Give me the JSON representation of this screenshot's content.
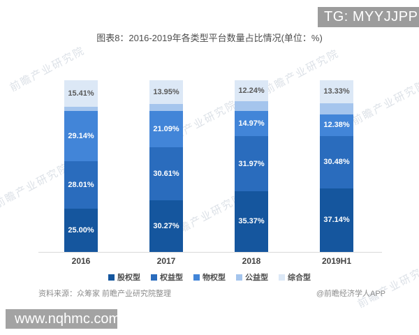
{
  "header": {
    "tg_badge": "TG: MYYJJPP",
    "title": "图表8：2016-2019年各类型平台数量占比情况(单位：%)"
  },
  "chart_data": {
    "type": "bar",
    "stacked": true,
    "title": "图表8：2016-2019年各类型平台数量占比情况(单位：%)",
    "unit": "%",
    "ylim": [
      0,
      100
    ],
    "grid": false,
    "legend_position": "bottom",
    "categories": [
      "2016",
      "2017",
      "2018",
      "2019H1"
    ],
    "series": [
      {
        "name": "股权型",
        "color": "#15569e",
        "values": [
          25.0,
          30.27,
          35.37,
          37.14
        ],
        "labels": [
          "25.00%",
          "30.27%",
          "35.37%",
          "37.14%"
        ],
        "show_label": true,
        "label_color": "#ffffff"
      },
      {
        "name": "权益型",
        "color": "#2a6cbd",
        "values": [
          28.01,
          30.61,
          31.97,
          30.48
        ],
        "labels": [
          "28.01%",
          "30.61%",
          "31.97%",
          "30.48%"
        ],
        "show_label": true,
        "label_color": "#ffffff"
      },
      {
        "name": "物权型",
        "color": "#4285d8",
        "values": [
          29.14,
          21.09,
          14.97,
          12.38
        ],
        "labels": [
          "29.14%",
          "21.09%",
          "14.97%",
          "12.38%"
        ],
        "show_label": true,
        "label_color": "#ffffff"
      },
      {
        "name": "公益型",
        "color": "#a5c5ed",
        "values": [
          2.44,
          4.08,
          5.45,
          6.67
        ],
        "labels": [
          "",
          "",
          "",
          ""
        ],
        "show_label": false,
        "label_color": "#595959"
      },
      {
        "name": "综合型",
        "color": "#dce8f6",
        "values": [
          15.41,
          13.95,
          12.24,
          13.33
        ],
        "labels": [
          "15.41%",
          "13.95%",
          "12.24%",
          "13.33%"
        ],
        "show_label": true,
        "label_color": "#595959"
      }
    ]
  },
  "footer": {
    "source": "资料来源：众筹家 前瞻产业研究院整理",
    "credit": "@前瞻经济学人APP",
    "watermark_url": "www.nqhmc.com",
    "diagonal_watermark": "前瞻产业研究院"
  }
}
